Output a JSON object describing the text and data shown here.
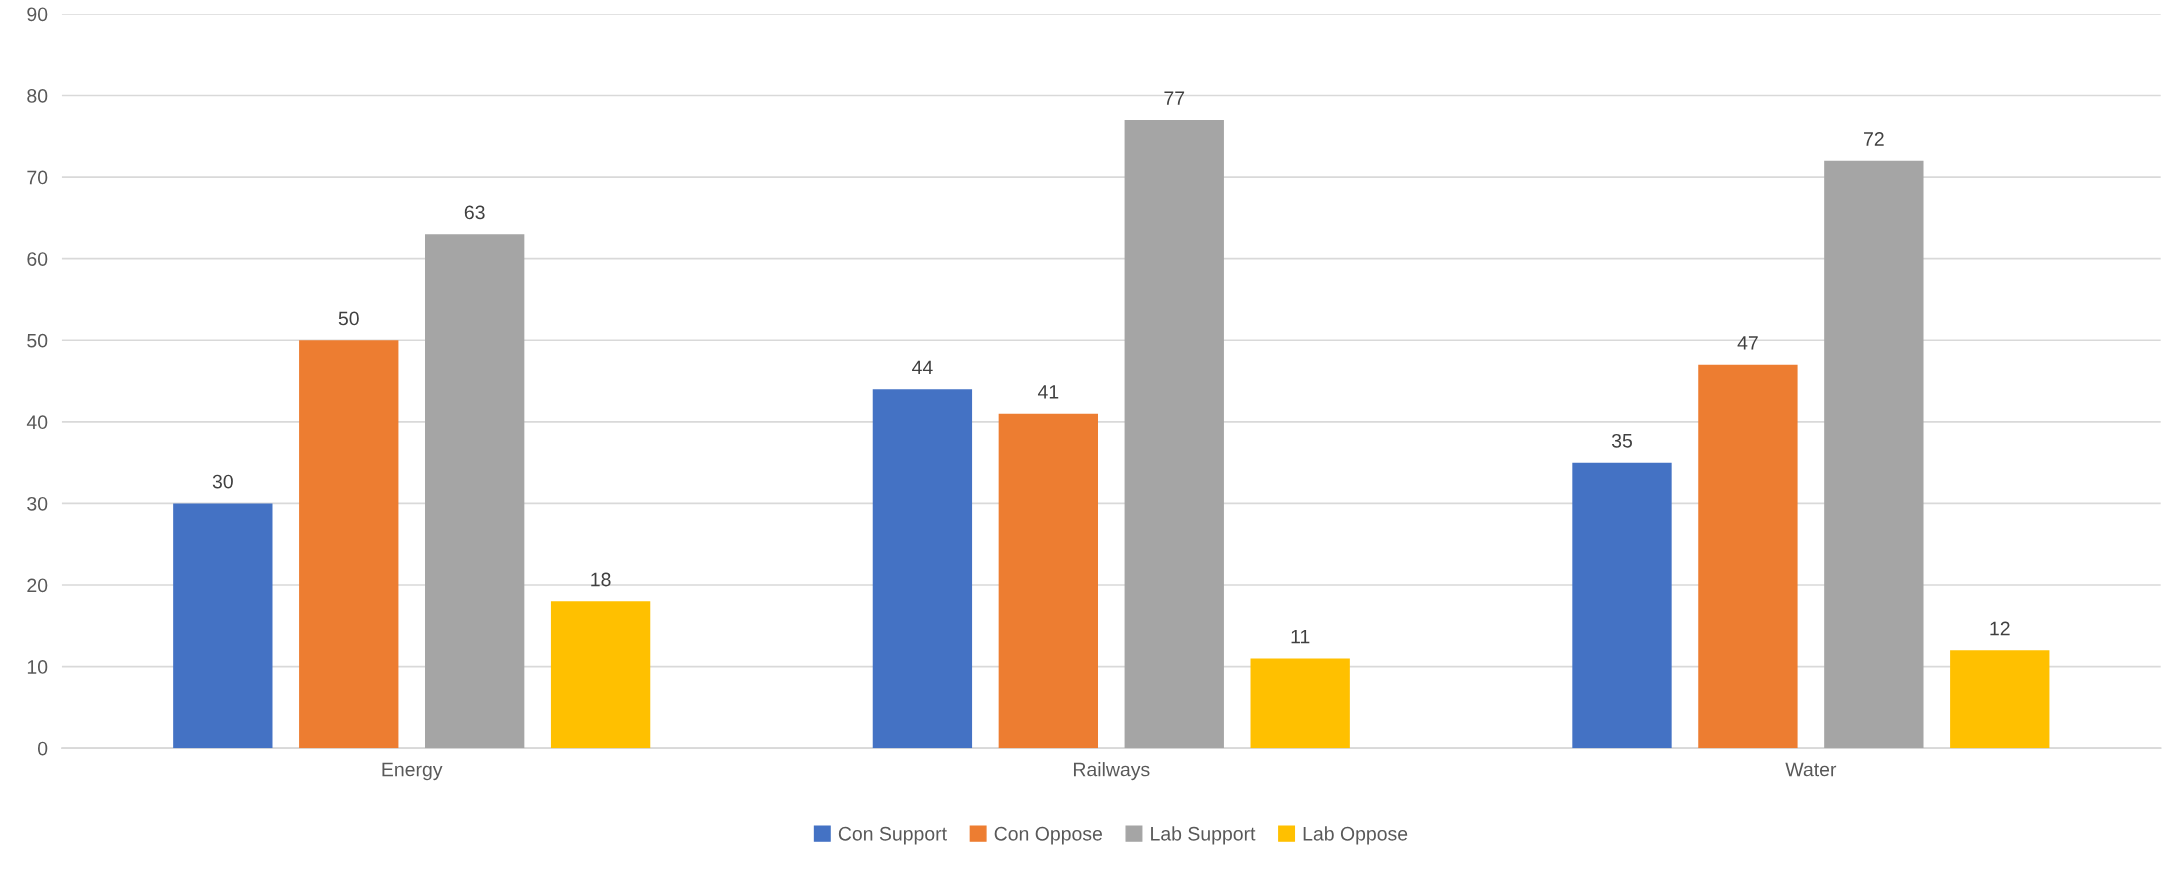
{
  "chart_data": {
    "type": "bar",
    "categories": [
      "Energy",
      "Railways",
      "Water"
    ],
    "series": [
      {
        "name": "Con Support",
        "color": "#4472c4",
        "values": [
          30,
          44,
          35
        ]
      },
      {
        "name": "Con Oppose",
        "color": "#ed7d31",
        "values": [
          50,
          41,
          47
        ]
      },
      {
        "name": "Lab Support",
        "color": "#a5a5a5",
        "values": [
          63,
          77,
          72
        ]
      },
      {
        "name": "Lab Oppose",
        "color": "#ffc000",
        "values": [
          18,
          11,
          12
        ]
      }
    ],
    "ylim": [
      0,
      90
    ],
    "yticks": [
      0,
      10,
      20,
      30,
      40,
      50,
      60,
      70,
      80,
      90
    ],
    "grid": "y",
    "legend": "bottom",
    "data_labels": true
  }
}
